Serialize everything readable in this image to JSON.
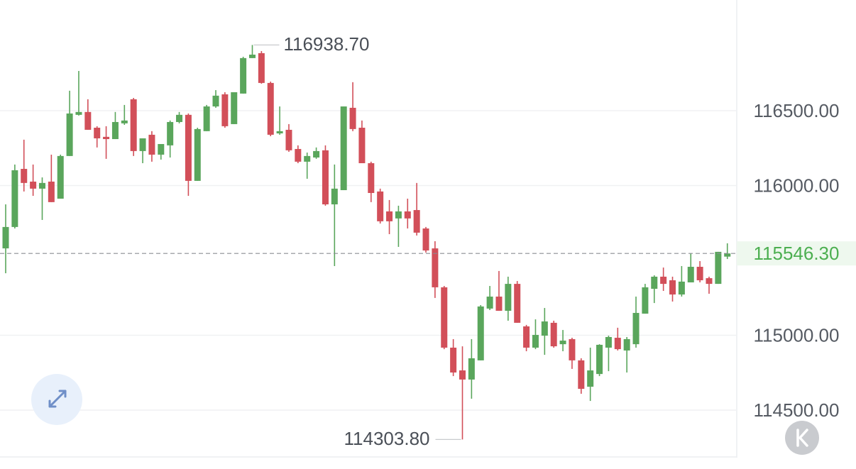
{
  "chart_data": {
    "type": "candlestick",
    "up_color": "#5aa65c",
    "down_color": "#d24f59",
    "grid": true,
    "ylim": [
      114206,
      117239
    ],
    "yticks": [
      {
        "value": 114500,
        "label": "114500.00"
      },
      {
        "value": 115000,
        "label": "115000.00"
      },
      {
        "value": 116000,
        "label": "116000.00"
      },
      {
        "value": 116500,
        "label": "116500.00"
      }
    ],
    "current_price": {
      "value": 115546.3,
      "label": "115546.30",
      "color": "#4caf50"
    },
    "annotations": [
      {
        "value": 116938.7,
        "label": "116938.70",
        "side": "right"
      },
      {
        "value": 114303.8,
        "label": "114303.80",
        "side": "left"
      }
    ],
    "open": [
      115580,
      115723,
      116111,
      116026,
      115979,
      116026,
      115912,
      116197,
      116472,
      116491,
      116386,
      116325,
      116310,
      116415,
      116576,
      116230,
      116339,
      116206,
      116268,
      116424,
      116472,
      116031,
      116363,
      116528,
      116609,
      116410,
      116614,
      116851,
      116884,
      116685,
      116348,
      116372,
      116244,
      116159,
      116187,
      116235,
      115874,
      115969,
      116519,
      116386,
      116149,
      115960,
      115827,
      115780,
      115827,
      115836,
      115713,
      115580,
      115320,
      114917,
      114765,
      114704,
      114832,
      115178,
      115258,
      115163,
      115343,
      115059,
      114917,
      114997,
      115083,
      114940,
      114974,
      114832,
      114656,
      114741,
      114917,
      114983,
      114898,
      114940,
      115144,
      115310,
      115391,
      115367,
      115272,
      115353,
      115457,
      115381,
      115343,
      115525
    ],
    "high": [
      115874,
      116140,
      116306,
      116140,
      116054,
      116206,
      116206,
      116633,
      116765,
      116576,
      116396,
      116396,
      116491,
      116538,
      116585,
      116315,
      116363,
      116277,
      116434,
      116491,
      116481,
      116386,
      116538,
      116637,
      116623,
      116623,
      116860,
      116938.7,
      116898,
      116694,
      116528,
      116410,
      116268,
      116220,
      116254,
      116268,
      116140,
      116528,
      116690,
      116434,
      116159,
      115979,
      115903,
      115865,
      115912,
      116017,
      115723,
      115628,
      115329,
      114974,
      114926,
      114974,
      115201,
      115329,
      115429,
      115391,
      115362,
      115069,
      115106,
      115182,
      115097,
      115035,
      114983,
      114846,
      114917,
      114940,
      114997,
      115050,
      114988,
      115258,
      115343,
      115400,
      115452,
      115391,
      115462,
      115547,
      115495,
      115391,
      115557,
      115614
    ],
    "low": [
      115414,
      115713,
      115960,
      115931,
      115770,
      115889,
      115912,
      116197,
      116467,
      116372,
      116254,
      116178,
      116310,
      116405,
      116197,
      116149,
      116159,
      116173,
      116187,
      116415,
      115931,
      116031,
      116363,
      116519,
      116386,
      116410,
      116614,
      116851,
      116680,
      116329,
      116339,
      116225,
      116149,
      116045,
      116178,
      115865,
      115462,
      115969,
      116363,
      116149,
      115889,
      115746,
      115675,
      115590,
      115713,
      115666,
      115552,
      115249,
      114907,
      114727,
      114303.8,
      114576,
      114832,
      115168,
      115163,
      115097,
      115083,
      114893,
      114907,
      114869,
      114917,
      114893,
      114775,
      114609,
      114561,
      114727,
      114760,
      114898,
      114751,
      114917,
      115144,
      115215,
      115296,
      115225,
      115258,
      115353,
      115353,
      115277,
      115343,
      115509
    ],
    "close": [
      115723,
      116102,
      116017,
      115979,
      116017,
      115889,
      116197,
      116481,
      116491,
      116372,
      116315,
      116310,
      116424,
      116434,
      116230,
      116315,
      116206,
      116277,
      116424,
      116472,
      116031,
      116377,
      116528,
      116600,
      116396,
      116623,
      116851,
      116874,
      116685,
      116339,
      116363,
      116235,
      116159,
      116197,
      116230,
      115874,
      115979,
      116528,
      116377,
      116149,
      115950,
      115761,
      115761,
      115827,
      115780,
      115685,
      115566,
      115320,
      114917,
      114751,
      114704,
      114846,
      115192,
      115258,
      115163,
      115343,
      115083,
      114917,
      115002,
      115092,
      114926,
      114964,
      114832,
      114642,
      114765,
      114936,
      114988,
      114907,
      114974,
      115149,
      115320,
      115391,
      115343,
      115272,
      115358,
      115457,
      115367,
      115343,
      115557,
      115546.3
    ]
  }
}
